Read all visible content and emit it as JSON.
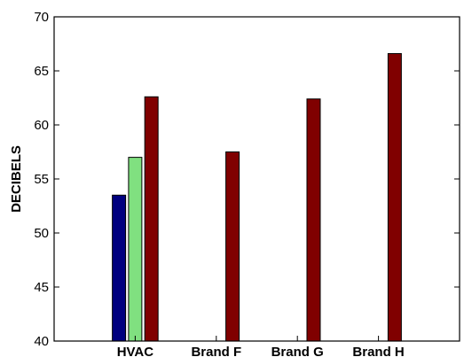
{
  "chart_data": {
    "type": "bar",
    "categories": [
      "HVAC",
      "Brand F",
      "Brand G",
      "Brand H"
    ],
    "series": [
      {
        "values": [
          53.5,
          null,
          null,
          null
        ],
        "color": "#00007f"
      },
      {
        "values": [
          57.0,
          null,
          null,
          null
        ],
        "color": "#80e080"
      },
      {
        "values": [
          62.6,
          57.5,
          62.4,
          66.6
        ],
        "color": "#800000"
      }
    ],
    "xlabel": "",
    "ylabel": "DECIBELS",
    "ylim": [
      40,
      70
    ],
    "yticks": [
      "40",
      "45",
      "50",
      "55",
      "60",
      "65",
      "70"
    ],
    "grid": false,
    "legend": "none"
  }
}
